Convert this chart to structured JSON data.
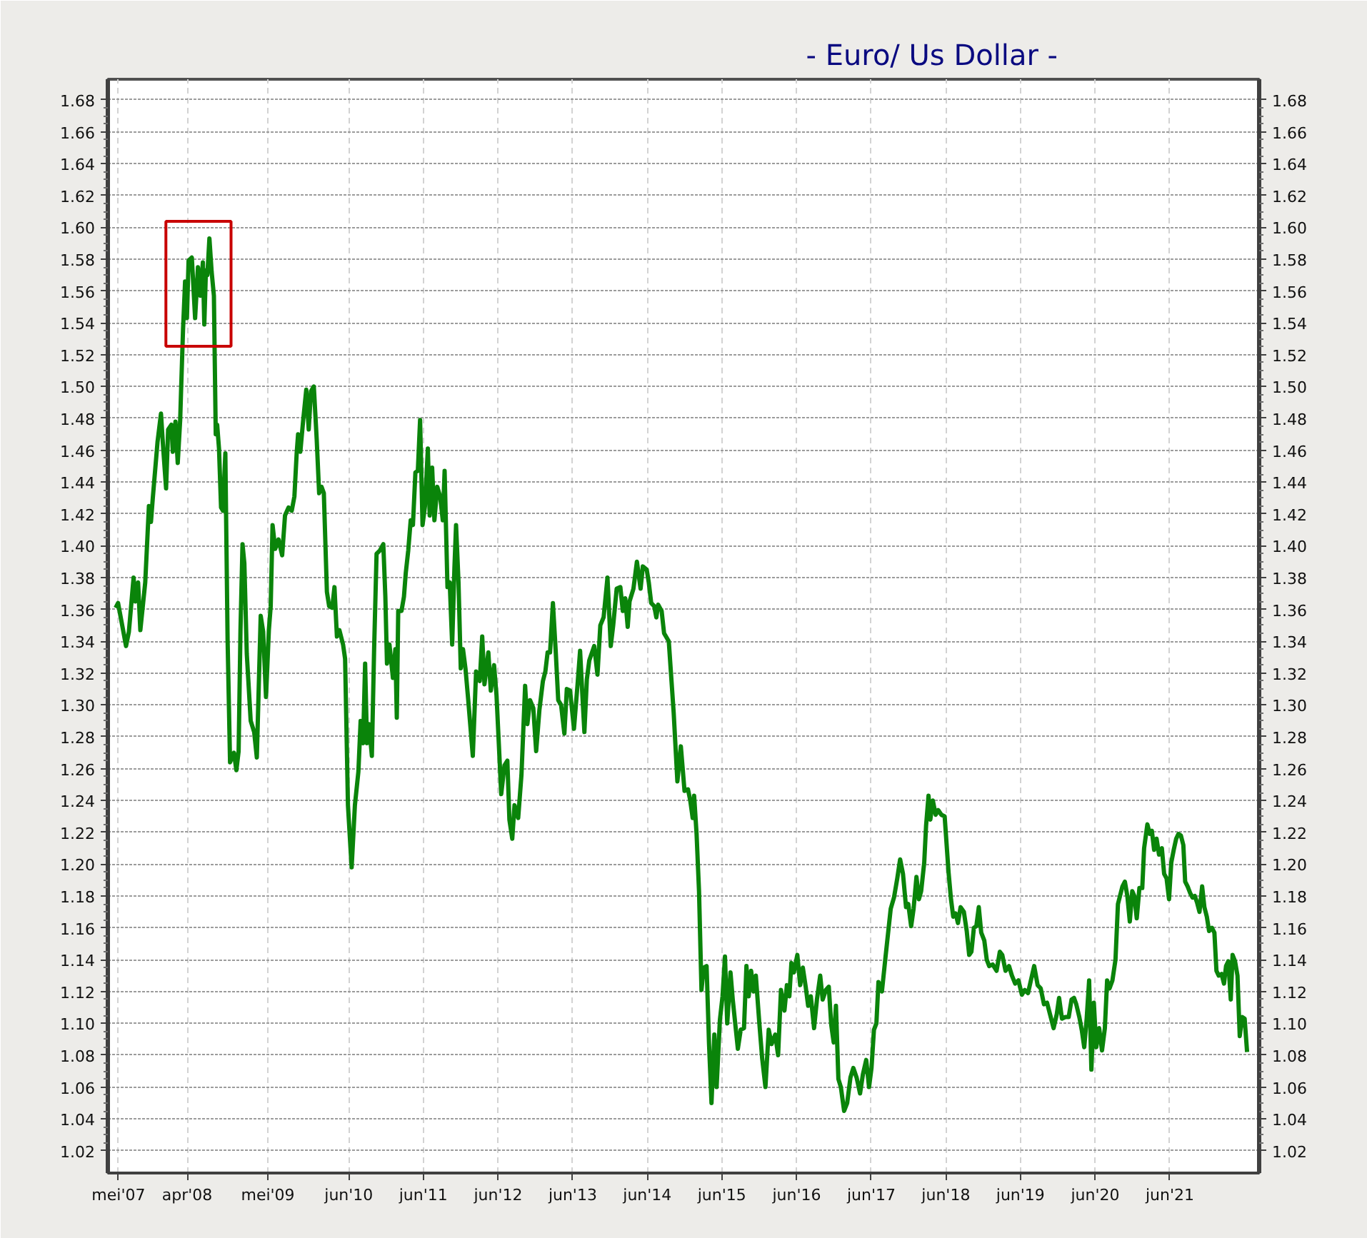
{
  "chart_data": {
    "type": "line",
    "title": "- Euro/ Us Dollar -",
    "x": [
      "2007-04-17",
      "2007-04-29",
      "2007-06-07",
      "2007-06-21",
      "2007-07-14",
      "2007-07-23",
      "2007-08-05",
      "2007-08-16",
      "2007-09-09",
      "2007-09-27",
      "2007-10-07",
      "2007-10-16",
      "2007-11-08",
      "2007-11-25",
      "2007-12-06",
      "2007-12-20",
      "2007-12-30",
      "2008-01-15",
      "2008-01-22",
      "2008-02-04",
      "2008-02-15",
      "2008-02-27",
      "2008-03-03",
      "2008-03-12",
      "2008-03-22",
      "2008-03-31",
      "2008-04-08",
      "2008-04-24",
      "2008-05-10",
      "2008-05-24",
      "2008-06-05",
      "2008-06-17",
      "2008-06-24",
      "2008-07-02",
      "2008-07-09",
      "2008-07-19",
      "2008-07-30",
      "2008-08-10",
      "2008-08-19",
      "2008-08-26",
      "2008-09-04",
      "2008-09-14",
      "2008-09-23",
      "2008-10-05",
      "2008-10-16",
      "2008-10-28",
      "2008-11-16",
      "2008-11-28",
      "2008-12-09",
      "2008-12-18",
      "2008-12-28",
      "2009-01-06",
      "2009-01-18",
      "2009-02-06",
      "2009-02-23",
      "2009-03-08",
      "2009-03-27",
      "2009-04-08",
      "2009-04-22",
      "2009-05-06",
      "2009-05-15",
      "2009-05-24",
      "2009-06-06",
      "2009-06-22",
      "2009-07-10",
      "2009-07-24",
      "2009-08-10",
      "2009-08-26",
      "2009-09-08",
      "2009-09-19",
      "2009-09-26",
      "2009-10-07",
      "2009-10-21",
      "2009-11-05",
      "2009-11-17",
      "2009-11-28",
      "2009-12-12",
      "2009-12-26",
      "2010-01-07",
      "2010-01-19",
      "2010-01-30",
      "2010-02-14",
      "2010-02-25",
      "2010-03-12",
      "2010-03-23",
      "2010-04-04",
      "2010-04-16",
      "2010-05-04",
      "2010-05-14",
      "2010-05-28",
      "2010-06-15",
      "2010-07-01",
      "2010-07-18",
      "2010-07-29",
      "2010-08-10",
      "2010-08-20",
      "2010-08-29",
      "2010-09-08",
      "2010-09-22",
      "2010-10-03",
      "2010-10-15",
      "2010-10-31",
      "2010-11-17",
      "2010-11-27",
      "2010-12-05",
      "2010-12-17",
      "2011-01-03",
      "2011-01-15",
      "2011-01-22",
      "2011-01-29",
      "2011-02-14",
      "2011-02-26",
      "2011-03-07",
      "2011-03-19",
      "2011-03-31",
      "2011-04-11",
      "2011-04-23",
      "2011-05-05",
      "2011-05-16",
      "2011-05-28",
      "2011-06-09",
      "2011-06-23",
      "2011-07-02",
      "2011-07-14",
      "2011-07-25",
      "2011-08-08",
      "2011-08-22",
      "2011-09-04",
      "2011-09-13",
      "2011-09-27",
      "2011-10-08",
      "2011-10-20",
      "2011-10-31",
      "2011-11-08",
      "2011-11-20",
      "2011-12-01",
      "2011-12-12",
      "2011-12-24",
      "2012-01-06",
      "2012-01-29",
      "2012-02-14",
      "2012-03-03",
      "2012-03-15",
      "2012-03-26",
      "2012-04-14",
      "2012-04-26",
      "2012-05-12",
      "2012-05-24",
      "2012-06-16",
      "2012-07-02",
      "2012-07-16",
      "2012-07-26",
      "2012-08-09",
      "2012-08-20",
      "2012-09-07",
      "2012-09-23",
      "2012-10-11",
      "2012-10-22",
      "2012-11-04",
      "2012-11-20",
      "2012-12-04",
      "2012-12-20",
      "2013-01-06",
      "2013-01-18",
      "2013-01-29",
      "2013-02-10",
      "2013-02-24",
      "2013-03-10",
      "2013-03-22",
      "2013-04-05",
      "2013-04-21",
      "2013-05-03",
      "2013-05-19",
      "2013-06-07",
      "2013-06-24",
      "2013-07-07",
      "2013-07-17",
      "2013-07-28",
      "2013-08-09",
      "2013-08-21",
      "2013-09-14",
      "2013-09-30",
      "2013-10-14",
      "2013-10-30",
      "2013-11-18",
      "2013-12-04",
      "2013-12-16",
      "2014-01-02",
      "2014-01-20",
      "2014-02-01",
      "2014-02-13",
      "2014-02-25",
      "2014-03-06",
      "2014-03-25",
      "2014-04-11",
      "2014-04-29",
      "2014-05-10",
      "2014-05-29",
      "2014-06-08",
      "2014-06-20",
      "2014-07-05",
      "2014-07-15",
      "2014-07-24",
      "2014-08-10",
      "2014-08-22",
      "2014-09-14",
      "2014-10-08",
      "2014-10-26",
      "2014-11-12",
      "2014-11-30",
      "2014-12-17",
      "2014-12-28",
      "2015-01-09",
      "2015-01-16",
      "2015-01-28",
      "2015-02-09",
      "2015-02-21",
      "2015-03-04",
      "2015-03-18",
      "2015-03-30",
      "2015-04-11",
      "2015-04-25",
      "2015-05-06",
      "2015-05-22",
      "2015-06-04",
      "2015-06-16",
      "2015-06-27",
      "2015-07-13",
      "2015-07-24",
      "2015-08-18",
      "2015-09-01",
      "2015-09-17",
      "2015-09-29",
      "2015-10-10",
      "2015-10-22",
      "2015-11-03",
      "2015-11-14",
      "2015-11-30",
      "2015-12-15",
      "2015-12-31",
      "2016-01-16",
      "2016-01-30",
      "2016-02-17",
      "2016-03-02",
      "2016-03-16",
      "2016-04-02",
      "2016-04-14",
      "2016-04-26",
      "2016-05-06",
      "2016-05-18",
      "2016-06-04",
      "2016-06-18",
      "2016-07-01",
      "2016-07-15",
      "2016-07-27",
      "2016-08-09",
      "2016-08-25",
      "2016-09-08",
      "2016-09-24",
      "2016-10-06",
      "2016-10-22",
      "2016-11-05",
      "2016-11-17",
      "2016-11-29",
      "2016-12-10",
      "2016-12-22",
      "2017-01-03",
      "2017-01-19",
      "2017-02-03",
      "2017-02-19",
      "2017-03-05",
      "2017-03-21",
      "2017-04-07",
      "2017-04-21",
      "2017-05-07",
      "2017-05-21",
      "2017-06-02",
      "2017-06-14",
      "2017-06-26",
      "2017-07-06",
      "2017-07-23",
      "2017-08-09",
      "2017-09-04",
      "2017-09-20",
      "2017-10-06",
      "2017-10-20",
      "2017-11-03",
      "2017-11-18",
      "2017-11-29",
      "2017-12-13",
      "2017-12-25",
      "2018-01-08",
      "2018-01-20",
      "2018-01-31",
      "2018-02-15",
      "2018-02-24",
      "2018-03-08",
      "2018-03-17",
      "2018-03-29",
      "2018-04-12",
      "2018-04-24",
      "2018-05-10",
      "2018-05-26",
      "2018-06-14",
      "2018-06-26",
      "2018-07-07",
      "2018-07-19",
      "2018-07-30",
      "2018-08-12",
      "2018-08-28",
      "2018-09-11",
      "2018-09-23",
      "2018-10-04",
      "2018-10-16",
      "2018-10-28",
      "2018-11-09",
      "2018-11-21",
      "2018-12-06",
      "2018-12-18",
      "2018-12-30",
      "2019-01-16",
      "2019-02-04",
      "2019-02-20",
      "2019-03-04",
      "2019-03-20",
      "2019-04-06",
      "2019-04-20",
      "2019-05-06",
      "2019-05-22",
      "2019-06-08",
      "2019-06-22",
      "2019-07-08",
      "2019-07-22",
      "2019-08-07",
      "2019-08-24",
      "2019-09-08",
      "2019-09-24",
      "2019-10-09",
      "2019-10-23",
      "2019-11-10",
      "2019-11-26",
      "2019-12-07",
      "2019-12-21",
      "2020-01-07",
      "2020-01-23",
      "2020-02-06",
      "2020-02-18",
      "2020-02-29",
      "2020-03-15",
      "2020-03-28",
      "2020-04-08",
      "2020-04-20",
      "2020-05-02",
      "2020-05-13",
      "2020-05-25",
      "2020-06-06",
      "2020-06-20",
      "2020-07-04",
      "2020-07-18",
      "2020-07-29",
      "2020-08-10",
      "2020-08-24",
      "2020-09-08",
      "2020-09-20",
      "2020-09-30",
      "2020-10-12",
      "2020-10-24",
      "2020-11-05",
      "2020-11-17",
      "2020-11-29",
      "2020-12-09",
      "2020-12-21",
      "2021-01-03",
      "2021-01-17",
      "2021-01-26",
      "2021-02-11",
      "2021-02-23",
      "2021-03-05",
      "2021-03-16",
      "2021-03-28",
      "2021-04-09",
      "2021-04-23",
      "2021-05-04",
      "2021-05-16",
      "2021-05-28",
      "2021-06-08",
      "2021-06-20",
      "2021-07-02",
      "2021-07-13",
      "2021-07-25",
      "2021-08-06",
      "2021-08-15",
      "2021-08-27",
      "2021-09-08",
      "2021-09-20",
      "2021-10-01",
      "2021-10-12",
      "2021-10-24",
      "2021-11-06",
      "2021-11-17",
      "2021-11-29",
      "2021-12-10",
      "2021-12-24",
      "2022-01-05",
      "2022-01-15",
      "2022-01-26",
      "2022-02-09",
      "2022-02-21",
      "2022-03-03",
      "2022-03-14",
      "2022-03-26",
      "2022-04-04",
      "2022-04-16",
      "2022-04-28",
      "2022-05-09",
      "2022-05-21",
      "2022-06-02",
      "2022-06-14"
    ],
    "series": [
      {
        "color": "#0a840a",
        "values": [
          1.361,
          1.364,
          1.337,
          1.346,
          1.38,
          1.365,
          1.377,
          1.347,
          1.377,
          1.425,
          1.415,
          1.43,
          1.465,
          1.483,
          1.461,
          1.436,
          1.473,
          1.476,
          1.459,
          1.478,
          1.452,
          1.479,
          1.5,
          1.536,
          1.566,
          1.543,
          1.579,
          1.581,
          1.543,
          1.575,
          1.557,
          1.578,
          1.539,
          1.573,
          1.57,
          1.593,
          1.572,
          1.557,
          1.47,
          1.476,
          1.461,
          1.424,
          1.422,
          1.458,
          1.341,
          1.264,
          1.27,
          1.259,
          1.271,
          1.347,
          1.401,
          1.389,
          1.332,
          1.29,
          1.283,
          1.267,
          1.356,
          1.346,
          1.305,
          1.347,
          1.362,
          1.413,
          1.398,
          1.404,
          1.394,
          1.419,
          1.424,
          1.422,
          1.431,
          1.458,
          1.47,
          1.459,
          1.479,
          1.498,
          1.473,
          1.497,
          1.5,
          1.467,
          1.433,
          1.437,
          1.433,
          1.371,
          1.362,
          1.361,
          1.374,
          1.343,
          1.347,
          1.338,
          1.329,
          1.237,
          1.198,
          1.237,
          1.258,
          1.29,
          1.276,
          1.326,
          1.276,
          1.288,
          1.268,
          1.335,
          1.395,
          1.397,
          1.401,
          1.368,
          1.326,
          1.338,
          1.317,
          1.335,
          1.292,
          1.359,
          1.359,
          1.368,
          1.383,
          1.397,
          1.416,
          1.413,
          1.446,
          1.447,
          1.479,
          1.413,
          1.425,
          1.461,
          1.419,
          1.449,
          1.416,
          1.437,
          1.431,
          1.416,
          1.447,
          1.374,
          1.377,
          1.338,
          1.386,
          1.413,
          1.377,
          1.323,
          1.335,
          1.323,
          1.304,
          1.268,
          1.321,
          1.315,
          1.343,
          1.313,
          1.333,
          1.309,
          1.325,
          1.306,
          1.244,
          1.262,
          1.265,
          1.228,
          1.216,
          1.237,
          1.229,
          1.256,
          1.312,
          1.288,
          1.303,
          1.298,
          1.271,
          1.297,
          1.315,
          1.321,
          1.333,
          1.333,
          1.364,
          1.333,
          1.303,
          1.3,
          1.282,
          1.31,
          1.309,
          1.285,
          1.312,
          1.334,
          1.309,
          1.283,
          1.316,
          1.328,
          1.337,
          1.319,
          1.35,
          1.355,
          1.38,
          1.337,
          1.35,
          1.373,
          1.374,
          1.359,
          1.367,
          1.349,
          1.365,
          1.373,
          1.39,
          1.373,
          1.387,
          1.385,
          1.377,
          1.364,
          1.362,
          1.355,
          1.363,
          1.359,
          1.345,
          1.34,
          1.295,
          1.252,
          1.274,
          1.246,
          1.247,
          1.24,
          1.229,
          1.243,
          1.219,
          1.183,
          1.121,
          1.135,
          1.136,
          1.087,
          1.05,
          1.093,
          1.06,
          1.102,
          1.117,
          1.142,
          1.1,
          1.132,
          1.115,
          1.084,
          1.096,
          1.097,
          1.136,
          1.117,
          1.133,
          1.12,
          1.13,
          1.102,
          1.078,
          1.06,
          1.096,
          1.087,
          1.093,
          1.08,
          1.121,
          1.108,
          1.124,
          1.117,
          1.138,
          1.132,
          1.143,
          1.124,
          1.135,
          1.123,
          1.111,
          1.117,
          1.097,
          1.115,
          1.13,
          1.115,
          1.121,
          1.123,
          1.099,
          1.088,
          1.111,
          1.065,
          1.06,
          1.045,
          1.05,
          1.066,
          1.072,
          1.066,
          1.056,
          1.068,
          1.077,
          1.06,
          1.072,
          1.096,
          1.1,
          1.126,
          1.12,
          1.141,
          1.172,
          1.179,
          1.191,
          1.203,
          1.194,
          1.173,
          1.175,
          1.161,
          1.172,
          1.192,
          1.178,
          1.183,
          1.201,
          1.224,
          1.243,
          1.228,
          1.24,
          1.231,
          1.234,
          1.231,
          1.23,
          1.195,
          1.178,
          1.167,
          1.169,
          1.163,
          1.173,
          1.17,
          1.158,
          1.143,
          1.145,
          1.16,
          1.161,
          1.173,
          1.157,
          1.152,
          1.14,
          1.136,
          1.137,
          1.133,
          1.145,
          1.143,
          1.133,
          1.136,
          1.13,
          1.125,
          1.127,
          1.118,
          1.121,
          1.119,
          1.127,
          1.136,
          1.124,
          1.122,
          1.112,
          1.113,
          1.106,
          1.097,
          1.106,
          1.116,
          1.103,
          1.104,
          1.104,
          1.115,
          1.116,
          1.112,
          1.104,
          1.095,
          1.085,
          1.103,
          1.127,
          1.071,
          1.113,
          1.085,
          1.097,
          1.083,
          1.097,
          1.127,
          1.122,
          1.127,
          1.14,
          1.175,
          1.18,
          1.186,
          1.189,
          1.18,
          1.164,
          1.183,
          1.18,
          1.166,
          1.185,
          1.185,
          1.21,
          1.225,
          1.219,
          1.221,
          1.209,
          1.216,
          1.206,
          1.21,
          1.194,
          1.191,
          1.178,
          1.201,
          1.209,
          1.216,
          1.219,
          1.218,
          1.212,
          1.189,
          1.186,
          1.182,
          1.179,
          1.18,
          1.176,
          1.17,
          1.186,
          1.173,
          1.167,
          1.158,
          1.16,
          1.157,
          1.133,
          1.13,
          1.131,
          1.125,
          1.136,
          1.139,
          1.115,
          1.143,
          1.139,
          1.13,
          1.092,
          1.104,
          1.103,
          1.082
        ]
      }
    ],
    "xlim": [
      "2007-03-10",
      "2022-08-12"
    ],
    "xticks": [
      {
        "value": "2007-05-01",
        "label": "mei'07"
      },
      {
        "value": "2008-04-01",
        "label": "apr'08"
      },
      {
        "value": "2009-05-01",
        "label": "mei'09"
      },
      {
        "value": "2010-06-01",
        "label": "jun'10"
      },
      {
        "value": "2011-06-01",
        "label": "jun'11"
      },
      {
        "value": "2012-06-01",
        "label": "jun'12"
      },
      {
        "value": "2013-06-01",
        "label": "jun'13"
      },
      {
        "value": "2014-06-01",
        "label": "jun'14"
      },
      {
        "value": "2015-06-01",
        "label": "jun'15"
      },
      {
        "value": "2016-06-01",
        "label": "jun'16"
      },
      {
        "value": "2017-06-01",
        "label": "jun'17"
      },
      {
        "value": "2018-06-01",
        "label": "jun'18"
      },
      {
        "value": "2019-06-01",
        "label": "jun'19"
      },
      {
        "value": "2020-06-01",
        "label": "jun'20"
      },
      {
        "value": "2021-06-01",
        "label": "jun'21"
      }
    ],
    "ylim": [
      1.006,
      1.693
    ],
    "yticks": [
      1.02,
      1.04,
      1.06,
      1.08,
      {
        "value": 1.1,
        "label": "1.10"
      },
      1.12,
      1.14,
      1.16,
      1.18,
      {
        "value": 1.2,
        "label": "1.20"
      },
      1.22,
      1.24,
      1.26,
      1.28,
      {
        "value": 1.3,
        "label": "1.30"
      },
      1.32,
      1.34,
      1.36,
      1.38,
      {
        "value": 1.4,
        "label": "1.40"
      },
      1.42,
      1.44,
      1.46,
      1.48,
      {
        "value": 1.5,
        "label": "1.50"
      },
      1.52,
      1.54,
      1.56,
      1.58,
      {
        "value": 1.6,
        "label": "1.60"
      },
      1.62,
      1.64,
      1.66,
      1.68
    ],
    "y2lim": [
      1.006,
      1.693
    ],
    "y2ticks": [
      1.02,
      1.04,
      1.06,
      1.08,
      {
        "value": 1.1,
        "label": "1.10"
      },
      1.12,
      1.14,
      1.16,
      1.18,
      {
        "value": 1.2,
        "label": "1.20"
      },
      1.22,
      1.24,
      1.26,
      1.28,
      {
        "value": 1.3,
        "label": "1.30"
      },
      1.32,
      1.34,
      1.36,
      1.38,
      {
        "value": 1.4,
        "label": "1.40"
      },
      1.42,
      1.44,
      1.46,
      1.48,
      {
        "value": 1.5,
        "label": "1.50"
      },
      1.52,
      1.54,
      1.56,
      1.58,
      {
        "value": 1.6,
        "label": "1.60"
      },
      1.62,
      1.64,
      1.66,
      1.68
    ],
    "grid": true
  }
}
